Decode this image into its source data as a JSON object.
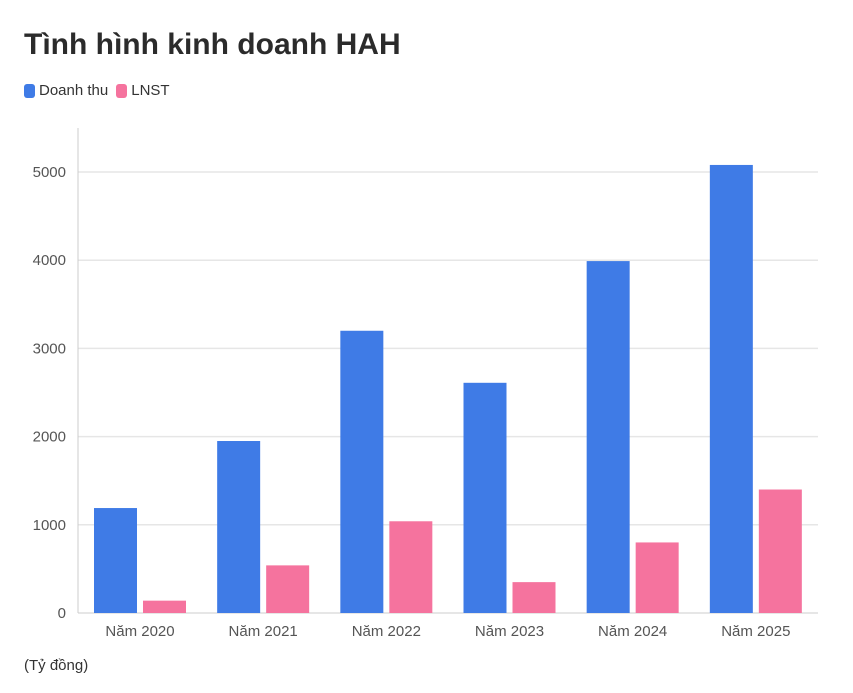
{
  "title": "Tình hình kinh doanh HAH",
  "footnote": "(Tỷ đồng)",
  "colors": {
    "revenue": "#3f7be6",
    "profit": "#f5739e",
    "grid": "#e6e6e6",
    "axis": "#cccccc"
  },
  "chart_data": {
    "type": "bar",
    "title": "Tình hình kinh doanh HAH",
    "xlabel": "",
    "ylabel": "",
    "unit": "(Tỷ đồng)",
    "categories": [
      "Năm 2020",
      "Năm 2021",
      "Năm 2022",
      "Năm 2023",
      "Năm 2024",
      "Năm 2025"
    ],
    "series": [
      {
        "name": "Doanh thu",
        "values": [
          1190,
          1950,
          3200,
          2610,
          3990,
          5080
        ]
      },
      {
        "name": "LNST",
        "values": [
          140,
          540,
          1040,
          350,
          800,
          1400
        ]
      }
    ],
    "ylim": [
      0,
      5500
    ],
    "yticks": [
      0,
      1000,
      2000,
      3000,
      4000,
      5000
    ],
    "grid": true,
    "legend_position": "top-left"
  }
}
